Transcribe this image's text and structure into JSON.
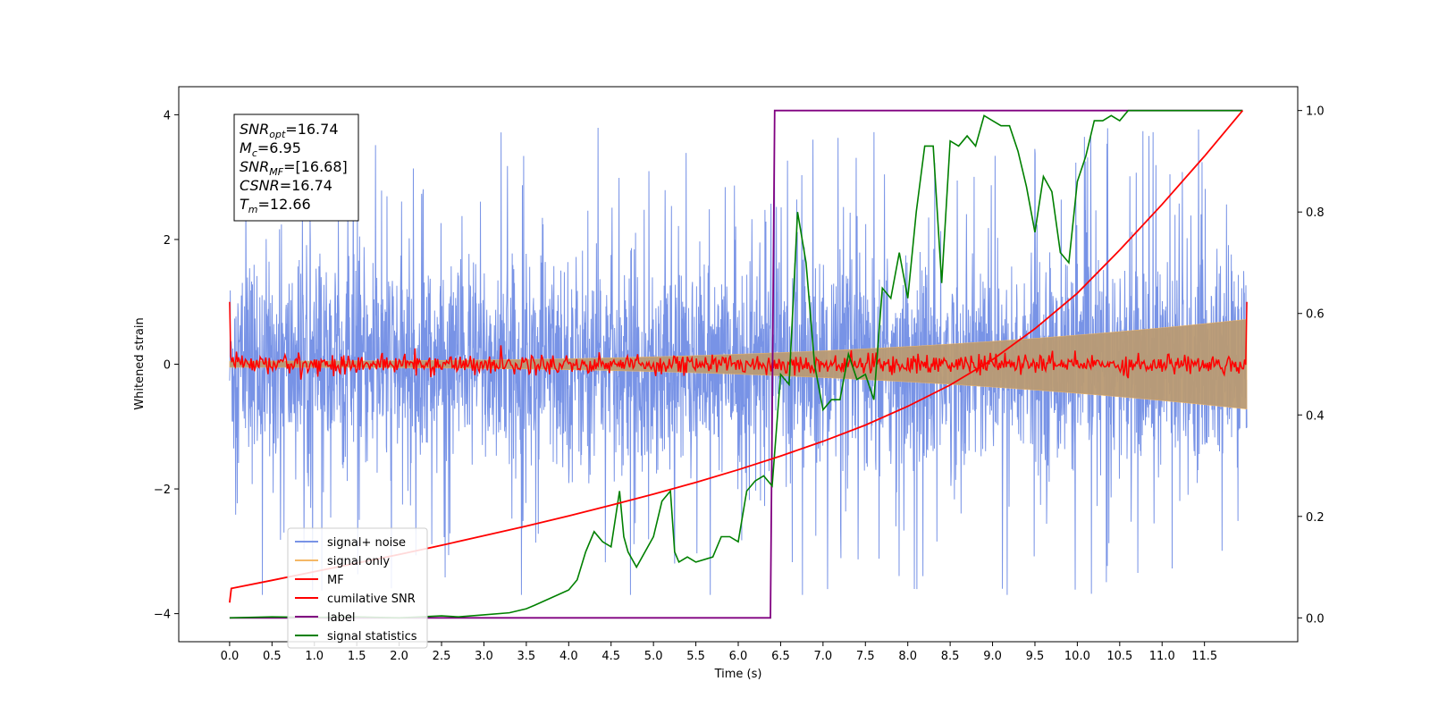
{
  "chart_data": {
    "type": "line",
    "xlabel": "Time (s)",
    "ylabel": "Whitened strain",
    "ylabel_right": "",
    "xlim": [
      -0.6,
      12.6
    ],
    "ylim": [
      -4.45,
      4.45
    ],
    "ylim_right": [
      -0.047,
      1.047
    ],
    "x_ticks": [
      "0.0",
      "0.5",
      "1.0",
      "1.5",
      "2.0",
      "2.5",
      "3.0",
      "3.5",
      "4.0",
      "4.5",
      "5.0",
      "5.5",
      "6.0",
      "6.5",
      "7.0",
      "7.5",
      "8.0",
      "8.5",
      "9.0",
      "9.5",
      "10.0",
      "10.5",
      "11.0",
      "11.5"
    ],
    "y_ticks": [
      -4,
      -2,
      0,
      2,
      4
    ],
    "y_ticks_right": [
      0.0,
      0.2,
      0.4,
      0.6,
      0.8,
      1.0
    ],
    "legend_position": "lower-left",
    "colors": {
      "signal_noise": "#7893e6",
      "signal_only": "#f4b866",
      "signal_fill": "#b99a73",
      "mf": "#ff0000",
      "cumulative_snr": "#ff0000",
      "label": "#800080",
      "signal_statistics": "#008000"
    },
    "series": [
      {
        "name": "signal+ noise",
        "axis": "left",
        "kind": "noise",
        "x_range": [
          0,
          12.0
        ],
        "spread": 1.6,
        "spike_max": 4.0
      },
      {
        "name": "signal only",
        "axis": "left",
        "kind": "chirp",
        "x_range": [
          0,
          12.0
        ],
        "amplitude_start": 0.05,
        "amplitude_end": 0.72
      },
      {
        "name": "MF",
        "axis": "left",
        "kind": "noise_small",
        "x_range": [
          0,
          12.0
        ],
        "spread": 0.08,
        "edge_values": [
          1.0,
          1.0
        ]
      },
      {
        "name": "cumilative SNR",
        "axis": "right",
        "x": [
          0,
          0.02,
          0.5,
          1.0,
          1.5,
          2.0,
          2.5,
          3.0,
          3.5,
          4.0,
          4.5,
          5.0,
          5.5,
          6.0,
          6.5,
          7.0,
          7.5,
          8.0,
          8.5,
          9.0,
          9.5,
          10.0,
          10.5,
          11.0,
          11.5,
          11.95
        ],
        "y": [
          0.03,
          0.058,
          0.074,
          0.091,
          0.108,
          0.125,
          0.143,
          0.162,
          0.181,
          0.201,
          0.222,
          0.244,
          0.267,
          0.292,
          0.319,
          0.348,
          0.38,
          0.417,
          0.459,
          0.509,
          0.57,
          0.64,
          0.725,
          0.815,
          0.91,
          1.0
        ]
      },
      {
        "name": "label",
        "axis": "right",
        "x": [
          0,
          6.38,
          6.43,
          11.95
        ],
        "y": [
          0.0,
          0.0,
          1.0,
          1.0
        ]
      },
      {
        "name": "signal statistics",
        "axis": "right",
        "x": [
          0,
          0.5,
          1.0,
          1.5,
          2.0,
          2.5,
          2.7,
          3.0,
          3.3,
          3.5,
          3.6,
          3.8,
          4.0,
          4.1,
          4.2,
          4.3,
          4.4,
          4.5,
          4.6,
          4.65,
          4.7,
          4.8,
          5.0,
          5.1,
          5.2,
          5.25,
          5.3,
          5.4,
          5.5,
          5.7,
          5.8,
          5.9,
          6.0,
          6.1,
          6.2,
          6.3,
          6.4,
          6.5,
          6.6,
          6.7,
          6.8,
          6.9,
          7.0,
          7.1,
          7.2,
          7.3,
          7.4,
          7.5,
          7.6,
          7.7,
          7.8,
          7.9,
          8.0,
          8.1,
          8.2,
          8.3,
          8.4,
          8.5,
          8.6,
          8.7,
          8.8,
          8.9,
          9.0,
          9.1,
          9.2,
          9.3,
          9.4,
          9.5,
          9.6,
          9.7,
          9.8,
          9.9,
          10.0,
          10.1,
          10.2,
          10.3,
          10.4,
          10.5,
          10.6,
          10.7,
          10.8,
          10.9,
          11.0,
          11.5,
          11.95
        ],
        "y": [
          0.0,
          0.002,
          0.001,
          0.002,
          0.0,
          0.004,
          0.002,
          0.006,
          0.01,
          0.018,
          0.025,
          0.04,
          0.055,
          0.075,
          0.13,
          0.17,
          0.15,
          0.14,
          0.25,
          0.16,
          0.13,
          0.1,
          0.16,
          0.23,
          0.25,
          0.13,
          0.11,
          0.12,
          0.11,
          0.12,
          0.16,
          0.16,
          0.15,
          0.25,
          0.27,
          0.28,
          0.26,
          0.48,
          0.46,
          0.8,
          0.7,
          0.5,
          0.41,
          0.43,
          0.43,
          0.52,
          0.47,
          0.48,
          0.43,
          0.65,
          0.63,
          0.72,
          0.63,
          0.8,
          0.93,
          0.93,
          0.66,
          0.94,
          0.93,
          0.95,
          0.93,
          0.99,
          0.98,
          0.97,
          0.97,
          0.92,
          0.85,
          0.76,
          0.87,
          0.84,
          0.72,
          0.7,
          0.86,
          0.91,
          0.98,
          0.98,
          0.99,
          0.98,
          1.0,
          1.0,
          1.0,
          1.0,
          1.0,
          1.0,
          1.0
        ]
      }
    ]
  },
  "legend": {
    "items": [
      {
        "label": "signal+ noise",
        "color": "#7893e6"
      },
      {
        "label": "signal only",
        "color": "#f4b866"
      },
      {
        "label": "MF",
        "color": "#ff0000"
      },
      {
        "label": "cumilative SNR",
        "color": "#ff0000"
      },
      {
        "label": "label",
        "color": "#800080"
      },
      {
        "label": "signal statistics",
        "color": "#008000"
      }
    ]
  },
  "info_box": {
    "snr_opt_label": "SNR",
    "snr_opt_sub": "opt",
    "snr_opt_value": "=16.74",
    "mc_label": "M",
    "mc_sub": "c",
    "mc_value": "=6.95",
    "snr_mf_label": "SNR",
    "snr_mf_sub": "MF",
    "snr_mf_value": "=[16.68]",
    "csnr_label": "CSNR",
    "csnr_value": "=16.74",
    "tm_label": "T",
    "tm_sub": "m",
    "tm_value": "=12.66"
  }
}
